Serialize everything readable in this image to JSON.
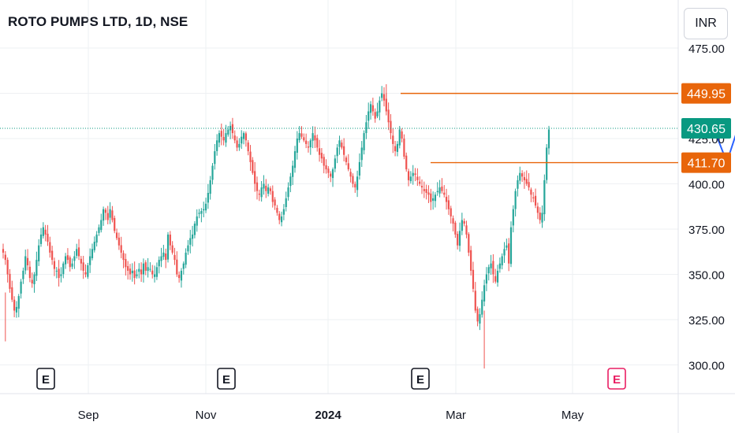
{
  "title": "ROTO PUMPS LTD, 1D, NSE",
  "currency": "INR",
  "colors": {
    "up": "#26a69a",
    "down": "#ef5350",
    "level": "#e8650a",
    "last": "#089981",
    "projection": "#2962ff",
    "earnings_past": "#131722",
    "earnings_future": "#e91e63",
    "grid": "#eef0f3"
  },
  "chart_data": {
    "type": "candlestick",
    "x_tick_labels": [
      "Sep",
      "Nov",
      "2024",
      "Mar",
      "May"
    ],
    "y_tick_labels": [
      "475.00",
      "425.00",
      "400.00",
      "375.00",
      "350.00",
      "325.00",
      "300.00"
    ],
    "ylim": [
      290,
      480
    ],
    "price_labels": [
      {
        "value": 449.95,
        "label": "449.95",
        "kind": "resistance"
      },
      {
        "value": 430.65,
        "label": "430.65",
        "kind": "last"
      },
      {
        "value": 411.7,
        "label": "411.70",
        "kind": "support"
      }
    ],
    "earnings_markers": [
      {
        "label": "E",
        "date": "2023-08-14",
        "future": false
      },
      {
        "label": "E",
        "date": "2023-11-07",
        "future": false
      },
      {
        "label": "E",
        "date": "2024-02-12",
        "future": false
      },
      {
        "label": "E",
        "date": "2024-05-27",
        "future": true
      }
    ],
    "projection_path": [
      {
        "date": "2024-04-24",
        "price": 430
      },
      {
        "date": "2024-04-29",
        "price": 412
      },
      {
        "date": "2024-05-08",
        "price": 450
      },
      {
        "date": "2024-05-10",
        "price": 444
      }
    ],
    "closes": [
      362,
      358,
      350,
      342,
      336,
      330,
      332,
      338,
      346,
      352,
      360,
      355,
      348,
      345,
      350,
      358,
      366,
      372,
      376,
      372,
      368,
      362,
      358,
      353,
      352,
      348,
      350,
      356,
      360,
      358,
      354,
      356,
      360,
      364,
      360,
      356,
      352,
      350,
      355,
      360,
      364,
      368,
      372,
      376,
      380,
      386,
      384,
      380,
      386,
      380,
      374,
      370,
      366,
      362,
      358,
      354,
      352,
      350,
      352,
      348,
      350,
      353,
      350,
      356,
      352,
      354,
      353,
      350,
      350,
      354,
      358,
      360,
      362,
      358,
      372,
      366,
      362,
      358,
      350,
      348,
      352,
      356,
      362,
      366,
      370,
      372,
      378,
      382,
      384,
      385,
      386,
      389,
      395,
      402,
      410,
      418,
      424,
      428,
      426,
      424,
      428,
      430,
      432,
      428,
      424,
      420,
      422,
      426,
      428,
      424,
      418,
      412,
      406,
      400,
      396,
      394,
      398,
      400,
      396,
      398,
      396,
      390,
      388,
      384,
      380,
      382,
      386,
      392,
      398,
      404,
      410,
      418,
      425,
      428,
      426,
      424,
      422,
      420,
      424,
      428,
      424,
      420,
      416,
      414,
      410,
      408,
      406,
      404,
      408,
      414,
      420,
      424,
      420,
      416,
      412,
      408,
      404,
      400,
      398,
      404,
      412,
      420,
      428,
      434,
      440,
      444,
      440,
      436,
      440,
      446,
      450,
      446,
      440,
      434,
      428,
      422,
      418,
      422,
      430,
      425,
      415,
      408,
      402,
      404,
      406,
      405,
      402,
      400,
      398,
      396,
      395,
      394,
      390,
      392,
      394,
      396,
      398,
      396,
      394,
      390,
      386,
      382,
      378,
      372,
      366,
      374,
      380,
      378,
      372,
      362,
      352,
      342,
      330,
      324,
      328,
      336,
      344,
      350,
      354,
      356,
      350,
      346,
      352,
      356,
      360,
      364,
      366,
      356,
      376,
      386,
      396,
      402,
      406,
      404,
      402,
      400,
      398,
      394,
      392,
      388,
      384,
      380,
      384,
      402,
      420,
      430
    ]
  }
}
